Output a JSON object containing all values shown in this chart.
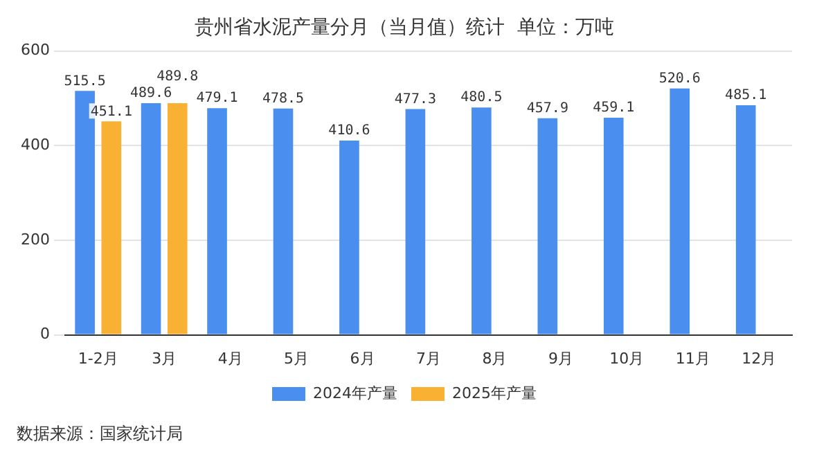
{
  "chart_data": {
    "type": "bar",
    "title": "贵州省水泥产量分月（当月值）统计  单位：万吨",
    "categories": [
      "1-2月",
      "3月",
      "4月",
      "5月",
      "6月",
      "7月",
      "8月",
      "9月",
      "10月",
      "11月",
      "12月"
    ],
    "series": [
      {
        "name": "2024年产量",
        "color": "#4a8ef0",
        "values": [
          515.5,
          489.6,
          479.1,
          478.5,
          410.6,
          477.3,
          480.5,
          457.9,
          459.1,
          520.6,
          485.1
        ]
      },
      {
        "name": "2025年产量",
        "color": "#f8b133",
        "values": [
          451.1,
          489.8,
          null,
          null,
          null,
          null,
          null,
          null,
          null,
          null,
          null
        ]
      }
    ],
    "ylim": [
      0,
      600
    ],
    "yticks": [
      0,
      200,
      400,
      600
    ],
    "grid": "y",
    "legend": "bottom",
    "data_labels": true,
    "annotations": [
      "数据来源：国家统计局"
    ]
  }
}
